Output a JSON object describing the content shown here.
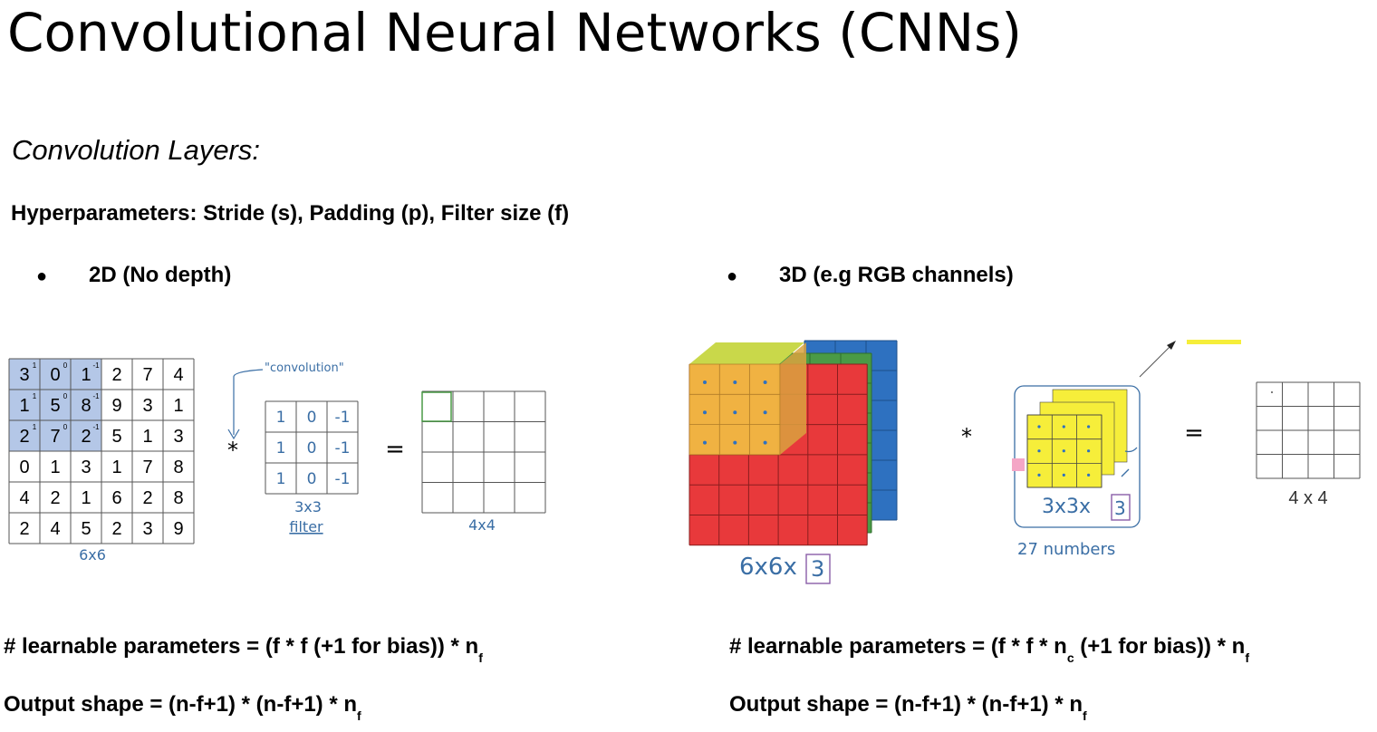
{
  "title": "Convolutional Neural Networks (CNNs)",
  "subtitle": "Convolution Layers:",
  "hyperparameters": "Hyperparameters: Stride (s), Padding (p), Filter size (f)",
  "left": {
    "heading": "2D (No depth)",
    "input_matrix": [
      [
        3,
        0,
        1,
        2,
        7,
        4
      ],
      [
        1,
        5,
        8,
        9,
        3,
        1
      ],
      [
        2,
        7,
        2,
        5,
        1,
        3
      ],
      [
        0,
        1,
        3,
        1,
        7,
        8
      ],
      [
        4,
        2,
        1,
        6,
        2,
        8
      ],
      [
        2,
        4,
        5,
        2,
        3,
        9
      ]
    ],
    "filter_weights": [
      [
        1,
        0,
        -1
      ],
      [
        1,
        0,
        -1
      ],
      [
        1,
        0,
        -1
      ]
    ],
    "overlay_weights": [
      "1",
      "0",
      "-1"
    ],
    "input_label": "6x6",
    "annotation": "\"convolution\"",
    "conv_op": "*",
    "equals": "=",
    "filter_label_1": "3x3",
    "filter_label_2": "filter",
    "output_label": "4x4",
    "params_text": "# learnable parameters =  (f * f (+1 for bias)) * n",
    "params_sub": "f",
    "output_text": "Output shape =   (n-f+1) * (n-f+1) * n",
    "output_sub": "f"
  },
  "right": {
    "heading": "3D (e.g RGB channels)",
    "volume_label": "6x6x",
    "volume_depth": "3",
    "conv_op": "*",
    "equals": "=",
    "filter_label": "3x3x",
    "filter_depth": "3",
    "numbers_label": "27  numbers",
    "output_label": "4 x 4",
    "params_text": "# learnable parameters =  (f * f * n",
    "params_sub1": "c",
    "params_text2": "  (+1 for bias)) * n",
    "params_sub2": "f",
    "output_text": "Output shape =  (n-f+1) * (n-f+1) * n",
    "output_sub": "f"
  },
  "colors": {
    "highlight": "#b4c7e7",
    "red": "#e8393b",
    "green": "#4a9a46",
    "blue": "#2e71c0",
    "yellow": "#f6ee3a",
    "orange": "#f0b842",
    "pen": "#3a6ea5"
  }
}
